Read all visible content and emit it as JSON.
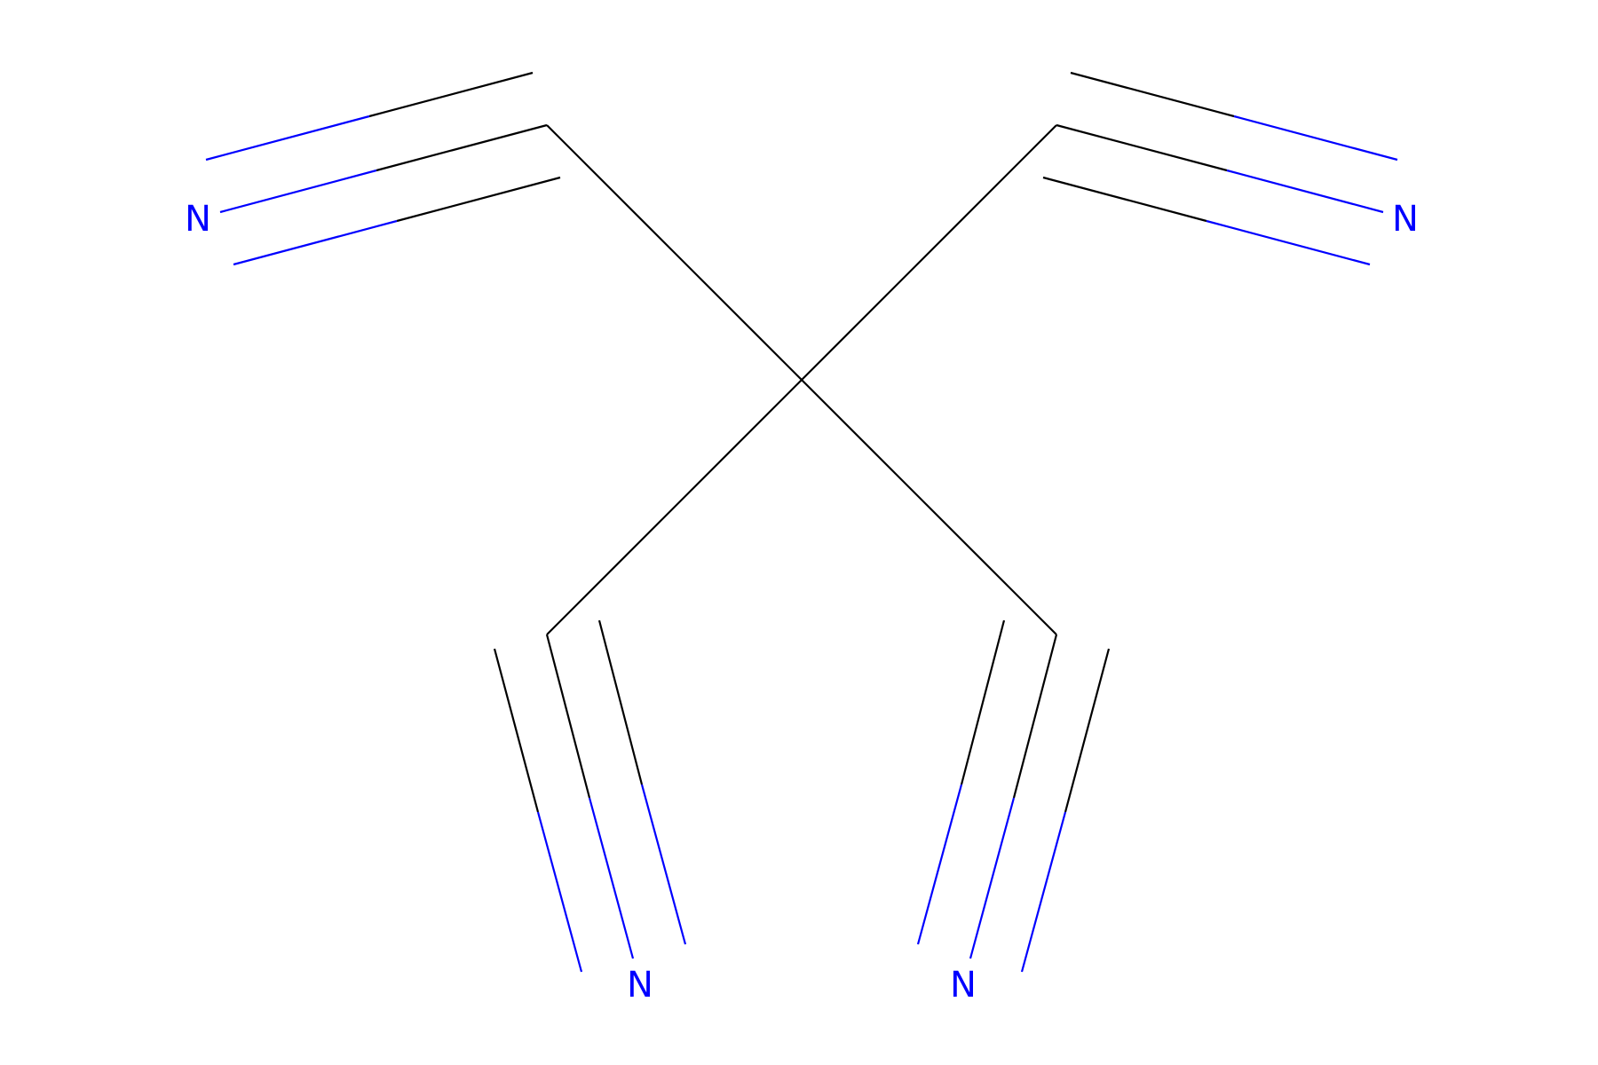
{
  "molecule": {
    "atoms": {
      "n1": {
        "symbol": "N"
      },
      "n2": {
        "symbol": "N"
      },
      "n3": {
        "symbol": "N"
      },
      "n4": {
        "symbol": "N"
      }
    }
  },
  "colors": {
    "carbon_bond": "#000000",
    "nitrogen": "#0000FF",
    "background": "#FFFFFF"
  }
}
